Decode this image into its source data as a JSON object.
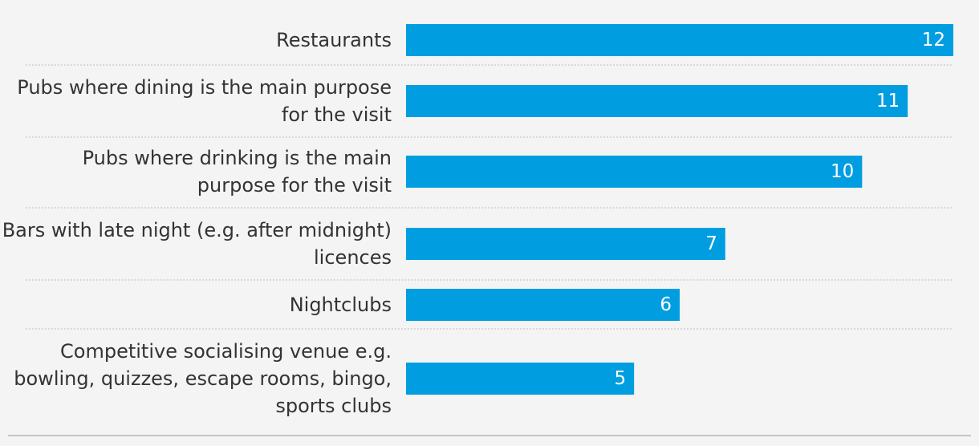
{
  "chart_data": {
    "type": "bar",
    "orientation": "horizontal",
    "categories": [
      "Restaurants",
      "Pubs where dining is the main purpose for the visit",
      "Pubs where drinking is the main purpose for the visit",
      "Bars with late night (e.g. after midnight) licences",
      "Nightclubs",
      "Competitive socialising venue e.g. bowling, quizzes, escape rooms, bingo, sports clubs"
    ],
    "category_lines": [
      [
        "Restaurants"
      ],
      [
        "Pubs where dining is the main purpose",
        "for the visit"
      ],
      [
        "Pubs where drinking is the main",
        "purpose for the visit"
      ],
      [
        "Bars with late night (e.g. after midnight)",
        "licences"
      ],
      [
        "Nightclubs"
      ],
      [
        "Competitive socialising venue e.g.",
        "bowling, quizzes, escape rooms, bingo,",
        "sports clubs"
      ]
    ],
    "values": [
      12,
      11,
      10,
      7,
      6,
      5
    ],
    "data_labels": [
      "12",
      "11",
      "10",
      "7",
      "6",
      "5"
    ],
    "xlim": [
      0,
      12
    ],
    "grid": false,
    "legend": "none",
    "bar_color": "#009ee0",
    "label_color": "#333333",
    "value_label_color": "#ffffff"
  }
}
